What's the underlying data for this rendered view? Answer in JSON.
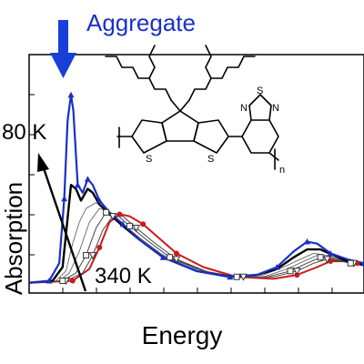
{
  "chart_data": {
    "type": "line",
    "xlabel": "Energy",
    "ylabel": "Absorption",
    "annotations": {
      "aggregate": "Aggregate",
      "temp_low": "80 K",
      "temp_high": "340 K"
    },
    "structure_labels": {
      "sulfur": "S",
      "nitrogen": "N",
      "repeat": "n"
    },
    "colors": {
      "low_t": "#1a2fc8",
      "high_t": "#cc1a1a",
      "mid": "#000000",
      "intermediate": "#555555",
      "arrow": "#1a3fd6"
    },
    "x_range": [
      0,
      1
    ],
    "y_range": [
      0,
      1
    ],
    "series": [
      {
        "color": "#1a2fc8",
        "width": 2.2,
        "marker": "triangle",
        "markerColor": "#1a2fc8",
        "points": [
          [
            0,
            0.02
          ],
          [
            0.06,
            0.03
          ],
          [
            0.09,
            0.12
          ],
          [
            0.105,
            0.45
          ],
          [
            0.115,
            0.85
          ],
          [
            0.125,
            0.98
          ],
          [
            0.132,
            0.9
          ],
          [
            0.145,
            0.52
          ],
          [
            0.16,
            0.48
          ],
          [
            0.175,
            0.55
          ],
          [
            0.19,
            0.52
          ],
          [
            0.21,
            0.44
          ],
          [
            0.24,
            0.38
          ],
          [
            0.28,
            0.32
          ],
          [
            0.33,
            0.24
          ],
          [
            0.4,
            0.15
          ],
          [
            0.5,
            0.08
          ],
          [
            0.6,
            0.05
          ],
          [
            0.68,
            0.06
          ],
          [
            0.74,
            0.1
          ],
          [
            0.79,
            0.18
          ],
          [
            0.83,
            0.23
          ],
          [
            0.86,
            0.22
          ],
          [
            0.9,
            0.17
          ],
          [
            0.95,
            0.14
          ],
          [
            1,
            0.12
          ]
        ]
      },
      {
        "color": "#000000",
        "width": 2.4,
        "marker": "none",
        "points": [
          [
            0,
            0.02
          ],
          [
            0.07,
            0.03
          ],
          [
            0.1,
            0.1
          ],
          [
            0.115,
            0.35
          ],
          [
            0.125,
            0.52
          ],
          [
            0.14,
            0.5
          ],
          [
            0.155,
            0.44
          ],
          [
            0.175,
            0.5
          ],
          [
            0.19,
            0.48
          ],
          [
            0.21,
            0.42
          ],
          [
            0.24,
            0.37
          ],
          [
            0.28,
            0.31
          ],
          [
            0.33,
            0.24
          ],
          [
            0.4,
            0.15
          ],
          [
            0.5,
            0.08
          ],
          [
            0.6,
            0.05
          ],
          [
            0.68,
            0.06
          ],
          [
            0.74,
            0.09
          ],
          [
            0.79,
            0.15
          ],
          [
            0.83,
            0.19
          ],
          [
            0.87,
            0.19
          ],
          [
            0.91,
            0.16
          ],
          [
            0.95,
            0.13
          ],
          [
            1,
            0.11
          ]
        ]
      },
      {
        "color": "#555555",
        "width": 0.8,
        "marker": "none",
        "points": [
          [
            0,
            0.02
          ],
          [
            0.08,
            0.03
          ],
          [
            0.11,
            0.08
          ],
          [
            0.13,
            0.22
          ],
          [
            0.15,
            0.33
          ],
          [
            0.17,
            0.4
          ],
          [
            0.2,
            0.43
          ],
          [
            0.23,
            0.39
          ],
          [
            0.27,
            0.33
          ],
          [
            0.32,
            0.25
          ],
          [
            0.4,
            0.16
          ],
          [
            0.5,
            0.08
          ],
          [
            0.6,
            0.05
          ],
          [
            0.7,
            0.06
          ],
          [
            0.76,
            0.1
          ],
          [
            0.81,
            0.14
          ],
          [
            0.85,
            0.17
          ],
          [
            0.89,
            0.16
          ],
          [
            0.94,
            0.13
          ],
          [
            1,
            0.11
          ]
        ]
      },
      {
        "color": "#555555",
        "width": 0.8,
        "marker": "none",
        "points": [
          [
            0,
            0.02
          ],
          [
            0.09,
            0.03
          ],
          [
            0.12,
            0.07
          ],
          [
            0.15,
            0.18
          ],
          [
            0.18,
            0.33
          ],
          [
            0.21,
            0.4
          ],
          [
            0.24,
            0.38
          ],
          [
            0.28,
            0.32
          ],
          [
            0.33,
            0.25
          ],
          [
            0.4,
            0.16
          ],
          [
            0.5,
            0.09
          ],
          [
            0.6,
            0.05
          ],
          [
            0.7,
            0.05
          ],
          [
            0.77,
            0.09
          ],
          [
            0.82,
            0.13
          ],
          [
            0.86,
            0.16
          ],
          [
            0.9,
            0.15
          ],
          [
            0.95,
            0.13
          ],
          [
            1,
            0.11
          ]
        ]
      },
      {
        "color": "#444444",
        "width": 1.0,
        "marker": "square",
        "markerColor": "#333333",
        "points": [
          [
            0,
            0.02
          ],
          [
            0.1,
            0.03
          ],
          [
            0.14,
            0.07
          ],
          [
            0.17,
            0.16
          ],
          [
            0.2,
            0.3
          ],
          [
            0.23,
            0.38
          ],
          [
            0.26,
            0.37
          ],
          [
            0.3,
            0.31
          ],
          [
            0.35,
            0.24
          ],
          [
            0.42,
            0.15
          ],
          [
            0.52,
            0.08
          ],
          [
            0.62,
            0.05
          ],
          [
            0.71,
            0.05
          ],
          [
            0.78,
            0.08
          ],
          [
            0.83,
            0.12
          ],
          [
            0.87,
            0.15
          ],
          [
            0.91,
            0.14
          ],
          [
            0.96,
            0.12
          ],
          [
            1,
            0.11
          ]
        ]
      },
      {
        "color": "#444444",
        "width": 1.0,
        "marker": "triangle-down",
        "markerColor": "#333333",
        "points": [
          [
            0,
            0.02
          ],
          [
            0.11,
            0.03
          ],
          [
            0.16,
            0.07
          ],
          [
            0.19,
            0.16
          ],
          [
            0.22,
            0.29
          ],
          [
            0.25,
            0.36
          ],
          [
            0.28,
            0.36
          ],
          [
            0.32,
            0.3
          ],
          [
            0.37,
            0.23
          ],
          [
            0.44,
            0.14
          ],
          [
            0.54,
            0.07
          ],
          [
            0.64,
            0.05
          ],
          [
            0.73,
            0.05
          ],
          [
            0.8,
            0.08
          ],
          [
            0.85,
            0.12
          ],
          [
            0.89,
            0.14
          ],
          [
            0.93,
            0.13
          ],
          [
            0.97,
            0.12
          ],
          [
            1,
            0.11
          ]
        ]
      },
      {
        "color": "#cc1a1a",
        "width": 2.0,
        "marker": "circle",
        "markerColor": "#cc1a1a",
        "points": [
          [
            0,
            0.02
          ],
          [
            0.13,
            0.03
          ],
          [
            0.18,
            0.09
          ],
          [
            0.21,
            0.2
          ],
          [
            0.24,
            0.33
          ],
          [
            0.27,
            0.37
          ],
          [
            0.3,
            0.36
          ],
          [
            0.34,
            0.32
          ],
          [
            0.38,
            0.26
          ],
          [
            0.44,
            0.17
          ],
          [
            0.52,
            0.1
          ],
          [
            0.62,
            0.05
          ],
          [
            0.73,
            0.04
          ],
          [
            0.8,
            0.06
          ],
          [
            0.86,
            0.1
          ],
          [
            0.9,
            0.13
          ],
          [
            0.94,
            0.13
          ],
          [
            0.98,
            0.12
          ],
          [
            1,
            0.11
          ]
        ]
      }
    ]
  }
}
